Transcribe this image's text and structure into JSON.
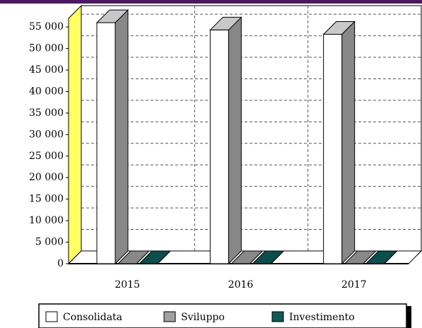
{
  "chart_data": {
    "type": "bar3d",
    "categories": [
      "2015",
      "2016",
      "2017"
    ],
    "series": [
      {
        "name": "Consolidata",
        "color": "#ffffff",
        "values": [
          56000,
          54300,
          53300
        ]
      },
      {
        "name": "Sviluppo",
        "color": "#a0a0a0",
        "values": [
          0,
          0,
          0
        ]
      },
      {
        "name": "Investimento",
        "color": "#0f5a5a",
        "values": [
          0,
          0,
          0
        ]
      }
    ],
    "ylim": [
      0,
      57000
    ],
    "yticks": [
      0,
      {
        "value": 5000,
        "label": "5 000"
      },
      {
        "value": 10000,
        "label": "10 000"
      },
      {
        "value": 15000,
        "label": "15 000"
      },
      {
        "value": 20000,
        "label": "20 000"
      },
      {
        "value": 25000,
        "label": "25 000"
      },
      {
        "value": 30000,
        "label": "30 000"
      },
      {
        "value": 35000,
        "label": "35 000"
      },
      {
        "value": 40000,
        "label": "40 000"
      },
      {
        "value": 45000,
        "label": "45 000"
      },
      {
        "value": 50000,
        "label": "50 000"
      },
      {
        "value": 55000,
        "label": "55 000"
      }
    ],
    "grid": true,
    "legend": "bottom"
  }
}
